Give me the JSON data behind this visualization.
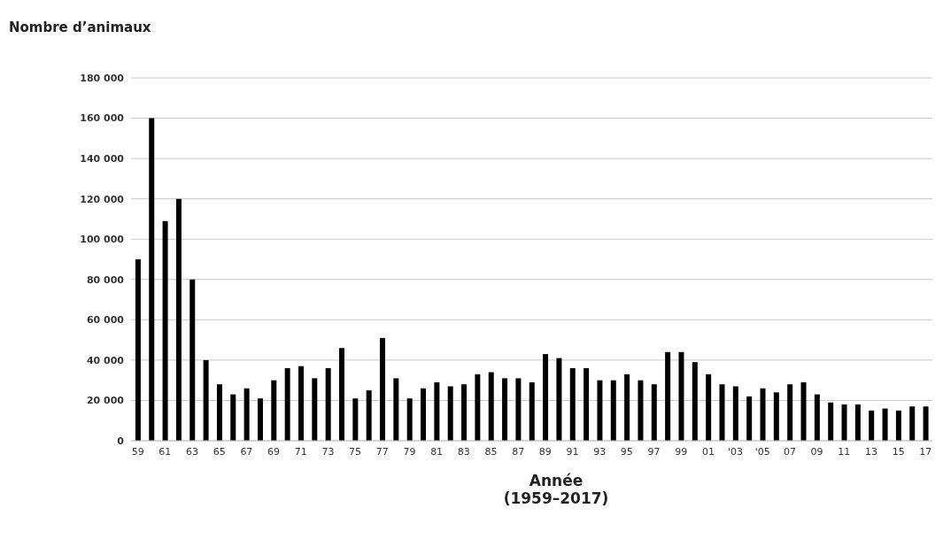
{
  "chart_data": {
    "type": "bar",
    "title": "Nombre d’animaux",
    "xlabel": "Année\n(1959–2017)",
    "categories": [
      "59",
      null,
      "61",
      null,
      "63",
      null,
      "65",
      null,
      "67",
      null,
      "69",
      null,
      "71",
      null,
      "73",
      null,
      "75",
      null,
      "77",
      null,
      "79",
      null,
      "81",
      null,
      "83",
      null,
      "85",
      null,
      "87",
      null,
      "89",
      null,
      "91",
      null,
      "93",
      null,
      "95",
      null,
      "97",
      null,
      "99",
      null,
      "01",
      null,
      "'03",
      null,
      "'05",
      null,
      "07",
      null,
      "09",
      null,
      "11",
      null,
      "13",
      null,
      "15",
      null,
      "17"
    ],
    "values": [
      90000,
      160000,
      109000,
      120000,
      80000,
      40000,
      28000,
      23000,
      26000,
      21000,
      30000,
      36000,
      37000,
      31000,
      36000,
      46000,
      21000,
      25000,
      51000,
      31000,
      21000,
      26000,
      29000,
      27000,
      28000,
      33000,
      34000,
      31000,
      31000,
      29000,
      43000,
      41000,
      36000,
      36000,
      30000,
      30000,
      33000,
      30000,
      28000,
      44000,
      44000,
      39000,
      33000,
      28000,
      27000,
      22000,
      26000,
      24000,
      28000,
      29000,
      23000,
      19000,
      18000,
      18000,
      15000,
      16000,
      15000,
      17000,
      17000
    ],
    "color": "#000000",
    "ylim": [
      0,
      180000
    ],
    "yticks": [
      {
        "value": 0,
        "label": "0"
      },
      {
        "value": 20000,
        "label": "20 000"
      },
      {
        "value": 40000,
        "label": "40 000"
      },
      {
        "value": 60000,
        "label": "60 000"
      },
      {
        "value": 80000,
        "label": "80 000"
      },
      {
        "value": 100000,
        "label": "100 000"
      },
      {
        "value": 120000,
        "label": "120 000"
      },
      {
        "value": 140000,
        "label": "140 000"
      },
      {
        "value": 160000,
        "label": "160 000"
      },
      {
        "value": 180000,
        "label": "180 000"
      }
    ],
    "grid": "y"
  }
}
